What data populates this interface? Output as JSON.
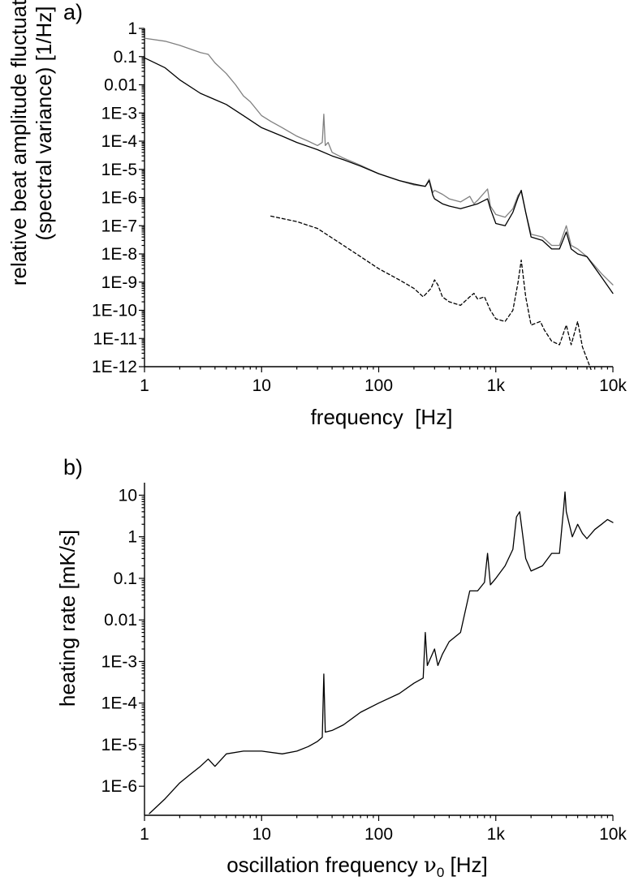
{
  "chart_data": [
    {
      "panel_label": "a)",
      "type": "line",
      "xscale": "log",
      "yscale": "log",
      "xlabel": "frequency  [Hz]",
      "ylabel_line1": "relative beat amplitude fluctuations",
      "ylabel_line2": "(spectral variance) [1/Hz]",
      "xlim": [
        1,
        10000
      ],
      "ylim": [
        1e-12,
        1
      ],
      "x_ticks": [
        1,
        10,
        100,
        1000,
        10000
      ],
      "x_tick_labels": [
        "1",
        "10",
        "100",
        "1k",
        "10k"
      ],
      "y_ticks": [
        1,
        0.1,
        0.01,
        0.001,
        0.0001,
        1e-05,
        1e-06,
        1e-07,
        1e-08,
        1e-09,
        1e-10,
        1e-11,
        1e-12
      ],
      "y_tick_labels": [
        "1",
        "0.1",
        "0.01",
        "1E-3",
        "1E-4",
        "1E-5",
        "1E-6",
        "1E-7",
        "1E-8",
        "1E-9",
        "1E-10",
        "1E-11",
        "1E-12"
      ],
      "grid": false,
      "series": [
        {
          "style": "solid",
          "color": "#808080",
          "points": [
            [
              1,
              0.45
            ],
            [
              1.5,
              0.35
            ],
            [
              2,
              0.25
            ],
            [
              3,
              0.14
            ],
            [
              3.5,
              0.12
            ],
            [
              4,
              0.06
            ],
            [
              5,
              0.025
            ],
            [
              6,
              0.01
            ],
            [
              7,
              0.004
            ],
            [
              8,
              0.0025
            ],
            [
              10,
              0.0008
            ],
            [
              12,
              0.0005
            ],
            [
              15,
              0.0003
            ],
            [
              20,
              0.00015
            ],
            [
              25,
              0.0001
            ],
            [
              30,
              7e-05
            ],
            [
              33,
              9e-05
            ],
            [
              34,
              0.0009
            ],
            [
              35,
              7e-05
            ],
            [
              37,
              9e-05
            ],
            [
              40,
              4e-05
            ],
            [
              50,
              2.5e-05
            ],
            [
              70,
              1.4e-05
            ],
            [
              100,
              7e-06
            ],
            [
              150,
              4e-06
            ],
            [
              200,
              2.8e-06
            ],
            [
              250,
              2.5e-06
            ],
            [
              270,
              4.5e-06
            ],
            [
              290,
              1.5e-06
            ],
            [
              300,
              1.8e-06
            ],
            [
              350,
              1.3e-06
            ],
            [
              400,
              9e-07
            ],
            [
              500,
              7e-07
            ],
            [
              600,
              1.1e-06
            ],
            [
              650,
              6e-07
            ],
            [
              700,
              8e-07
            ],
            [
              850,
              2e-06
            ],
            [
              900,
              5e-07
            ],
            [
              1000,
              2.5e-07
            ],
            [
              1200,
              2e-07
            ],
            [
              1400,
              4e-07
            ],
            [
              1550,
              1.2e-06
            ],
            [
              1650,
              1.6e-06
            ],
            [
              1800,
              3e-07
            ],
            [
              2000,
              5e-08
            ],
            [
              2500,
              4e-08
            ],
            [
              3000,
              2e-08
            ],
            [
              3500,
              2e-08
            ],
            [
              4000,
              1e-07
            ],
            [
              4400,
              2e-08
            ],
            [
              5000,
              1.5e-08
            ],
            [
              6000,
              8e-09
            ],
            [
              8000,
              2e-09
            ],
            [
              10000,
              8e-10
            ]
          ]
        },
        {
          "style": "solid",
          "color": "#000000",
          "points": [
            [
              1,
              0.09
            ],
            [
              1.5,
              0.04
            ],
            [
              2,
              0.015
            ],
            [
              3,
              0.005
            ],
            [
              5,
              0.002
            ],
            [
              7,
              0.0008
            ],
            [
              10,
              0.0003
            ],
            [
              15,
              0.00015
            ],
            [
              20,
              9e-05
            ],
            [
              30,
              5e-05
            ],
            [
              40,
              3e-05
            ],
            [
              50,
              2.2e-05
            ],
            [
              70,
              1.3e-05
            ],
            [
              100,
              7e-06
            ],
            [
              150,
              4e-06
            ],
            [
              200,
              3e-06
            ],
            [
              250,
              2.5e-06
            ],
            [
              270,
              4e-06
            ],
            [
              290,
              1.2e-06
            ],
            [
              300,
              9e-07
            ],
            [
              350,
              6e-07
            ],
            [
              400,
              5e-07
            ],
            [
              500,
              4e-07
            ],
            [
              600,
              5e-07
            ],
            [
              700,
              6e-07
            ],
            [
              850,
              9e-07
            ],
            [
              900,
              4e-07
            ],
            [
              1000,
              1.2e-07
            ],
            [
              1200,
              1e-07
            ],
            [
              1400,
              3e-07
            ],
            [
              1550,
              1e-06
            ],
            [
              1650,
              1.8e-06
            ],
            [
              1800,
              3e-07
            ],
            [
              2000,
              4e-08
            ],
            [
              2500,
              3e-08
            ],
            [
              3000,
              1.5e-08
            ],
            [
              3500,
              1.5e-08
            ],
            [
              4000,
              6e-08
            ],
            [
              4400,
              1.5e-08
            ],
            [
              5000,
              1e-08
            ],
            [
              6000,
              8e-09
            ],
            [
              8000,
              1.5e-09
            ],
            [
              10000,
              4e-10
            ]
          ]
        },
        {
          "style": "dashed",
          "color": "#000000",
          "points": [
            [
              12,
              2.2e-07
            ],
            [
              20,
              1.4e-07
            ],
            [
              30,
              8e-08
            ],
            [
              50,
              2e-08
            ],
            [
              70,
              8e-09
            ],
            [
              100,
              3e-09
            ],
            [
              150,
              1.2e-09
            ],
            [
              200,
              6e-10
            ],
            [
              240,
              3e-10
            ],
            [
              280,
              6e-10
            ],
            [
              300,
              1.2e-09
            ],
            [
              320,
              8e-10
            ],
            [
              350,
              3e-10
            ],
            [
              400,
              2e-10
            ],
            [
              500,
              1.5e-10
            ],
            [
              600,
              3e-10
            ],
            [
              650,
              4e-10
            ],
            [
              700,
              2.5e-10
            ],
            [
              800,
              3e-10
            ],
            [
              900,
              1e-10
            ],
            [
              1000,
              5e-11
            ],
            [
              1200,
              4e-11
            ],
            [
              1400,
              1e-10
            ],
            [
              1550,
              1e-09
            ],
            [
              1650,
              6e-09
            ],
            [
              1800,
              3e-10
            ],
            [
              2000,
              3e-11
            ],
            [
              2400,
              4e-11
            ],
            [
              2600,
              2e-11
            ],
            [
              3000,
              8e-12
            ],
            [
              3500,
              6e-12
            ],
            [
              4000,
              3e-11
            ],
            [
              4400,
              6e-12
            ],
            [
              5000,
              4e-11
            ],
            [
              5500,
              5e-12
            ],
            [
              6500,
              8e-13
            ]
          ]
        }
      ]
    },
    {
      "panel_label": "b)",
      "type": "line",
      "xscale": "log",
      "yscale": "log",
      "xlabel_main": "oscillation frequency ",
      "xlabel_symbol": "ν",
      "xlabel_sub": "0",
      "xlabel_unit": " [Hz]",
      "ylabel": "heating rate [mK/s]",
      "xlim": [
        1,
        10000
      ],
      "ylim": [
        2e-07,
        20
      ],
      "x_ticks": [
        1,
        10,
        100,
        1000,
        10000
      ],
      "x_tick_labels": [
        "1",
        "10",
        "100",
        "1k",
        "10k"
      ],
      "y_ticks": [
        10,
        1,
        0.1,
        0.01,
        0.001,
        0.0001,
        1e-05,
        1e-06
      ],
      "y_tick_labels": [
        "10",
        "1",
        "0.1",
        "0.01",
        "1E-3",
        "1E-4",
        "1E-5",
        "1E-6"
      ],
      "grid": false,
      "series": [
        {
          "style": "solid",
          "color": "#000000",
          "points": [
            [
              1.1,
              2.2e-07
            ],
            [
              1.5,
              5e-07
            ],
            [
              2,
              1.2e-06
            ],
            [
              2.5,
              2e-06
            ],
            [
              3,
              3e-06
            ],
            [
              3.5,
              4.5e-06
            ],
            [
              4,
              3e-06
            ],
            [
              5,
              6e-06
            ],
            [
              7,
              7e-06
            ],
            [
              10,
              7e-06
            ],
            [
              15,
              6e-06
            ],
            [
              20,
              7e-06
            ],
            [
              25,
              9e-06
            ],
            [
              30,
              1.2e-05
            ],
            [
              33,
              1.5e-05
            ],
            [
              34,
              0.0005
            ],
            [
              35,
              2e-05
            ],
            [
              40,
              2.2e-05
            ],
            [
              50,
              3e-05
            ],
            [
              70,
              6e-05
            ],
            [
              100,
              0.0001
            ],
            [
              150,
              0.00017
            ],
            [
              200,
              0.0003
            ],
            [
              240,
              0.0004
            ],
            [
              250,
              0.005
            ],
            [
              260,
              0.0008
            ],
            [
              300,
              0.002
            ],
            [
              320,
              0.0008
            ],
            [
              350,
              0.0015
            ],
            [
              400,
              0.003
            ],
            [
              500,
              0.005
            ],
            [
              600,
              0.05
            ],
            [
              700,
              0.05
            ],
            [
              800,
              0.08
            ],
            [
              850,
              0.4
            ],
            [
              900,
              0.07
            ],
            [
              1000,
              0.1
            ],
            [
              1200,
              0.2
            ],
            [
              1400,
              0.5
            ],
            [
              1500,
              3
            ],
            [
              1600,
              4
            ],
            [
              1800,
              0.3
            ],
            [
              2000,
              0.15
            ],
            [
              2500,
              0.2
            ],
            [
              3000,
              0.4
            ],
            [
              3500,
              0.4
            ],
            [
              3800,
              5
            ],
            [
              3900,
              12
            ],
            [
              4000,
              4
            ],
            [
              4500,
              1
            ],
            [
              5000,
              2
            ],
            [
              5500,
              1.2
            ],
            [
              6000,
              0.9
            ],
            [
              7000,
              1.5
            ],
            [
              8000,
              2
            ],
            [
              9000,
              2.6
            ],
            [
              10000,
              2.2
            ]
          ]
        }
      ]
    }
  ]
}
